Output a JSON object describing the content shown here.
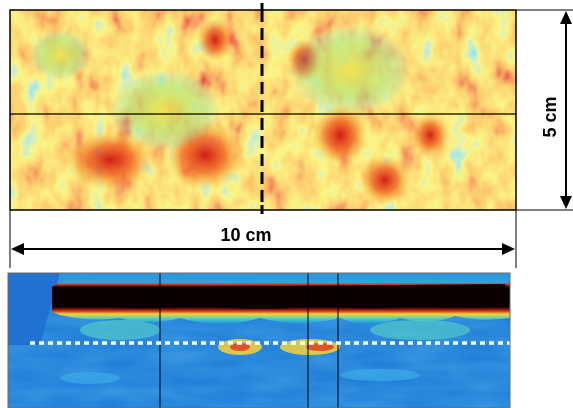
{
  "dimensions": {
    "width_label": "10 cm",
    "height_label": "5 cm"
  },
  "colors": {
    "heatmap_low": "#3fc3ee",
    "heatmap_mid": "#f7e83a",
    "heatmap_warm": "#f99a2a",
    "heatmap_high": "#dd1a14",
    "bscan_background": "#1a78d6",
    "bscan_band": "#0a0000",
    "bscan_edge": "#e0371c",
    "dotted_line": "#ffffff",
    "guide_line": "#000000"
  }
}
